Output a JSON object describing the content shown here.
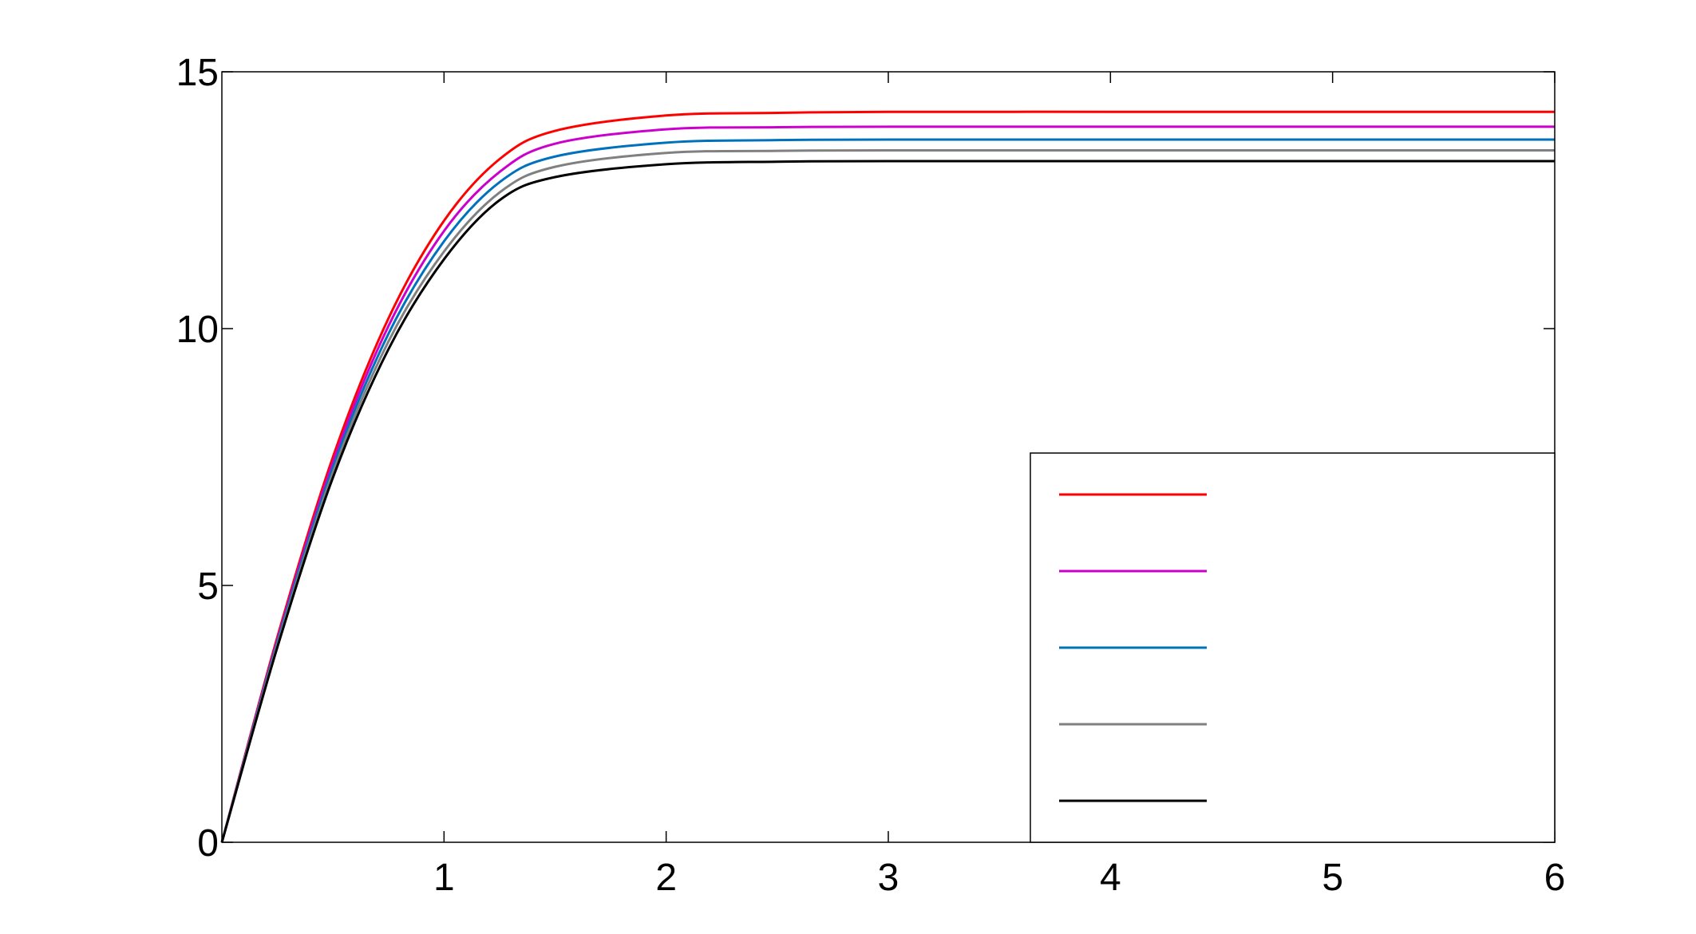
{
  "chart_data": {
    "type": "line",
    "title": "",
    "xlabel": "",
    "ylabel": "",
    "xlim": [
      0,
      6
    ],
    "ylim": [
      0,
      15
    ],
    "x_ticks": [
      1,
      2,
      3,
      4,
      5,
      6
    ],
    "x_tick_labels": [
      "1",
      "2",
      "3",
      "4",
      "5",
      "6"
    ],
    "y_ticks": [
      0,
      5,
      10,
      15
    ],
    "y_tick_labels": [
      "0",
      "5",
      "10",
      "15"
    ],
    "grid": false,
    "legend": {
      "position": "bottom-right",
      "labels_visible": false
    },
    "series": [
      {
        "color": "#ff0000",
        "x": [
          0,
          0.25,
          0.5,
          0.75,
          1.0,
          1.25,
          1.5,
          2.0,
          2.5,
          3.0,
          4.0,
          5.0,
          6.0
        ],
        "y": [
          0,
          4.0,
          7.5,
          10.2,
          12.1,
          13.3,
          13.85,
          14.15,
          14.2,
          14.22,
          14.22,
          14.22,
          14.22
        ]
      },
      {
        "color": "#cc00cc",
        "x": [
          0,
          0.25,
          0.5,
          0.75,
          1.0,
          1.25,
          1.5,
          2.0,
          2.5,
          3.0,
          4.0,
          5.0,
          6.0
        ],
        "y": [
          0,
          3.95,
          7.4,
          10.05,
          11.9,
          13.05,
          13.6,
          13.88,
          13.92,
          13.93,
          13.93,
          13.93,
          13.93
        ]
      },
      {
        "color": "#0072bd",
        "x": [
          0,
          0.25,
          0.5,
          0.75,
          1.0,
          1.25,
          1.5,
          2.0,
          2.5,
          3.0,
          4.0,
          5.0,
          6.0
        ],
        "y": [
          0,
          3.9,
          7.3,
          9.9,
          11.7,
          12.85,
          13.35,
          13.62,
          13.67,
          13.68,
          13.68,
          13.68,
          13.68
        ]
      },
      {
        "color": "#808080",
        "x": [
          0,
          0.25,
          0.5,
          0.75,
          1.0,
          1.25,
          1.5,
          2.0,
          2.5,
          3.0,
          4.0,
          5.0,
          6.0
        ],
        "y": [
          0,
          3.85,
          7.2,
          9.75,
          11.5,
          12.65,
          13.15,
          13.42,
          13.46,
          13.47,
          13.47,
          13.47,
          13.47
        ]
      },
      {
        "color": "#000000",
        "x": [
          0,
          0.25,
          0.5,
          0.75,
          1.0,
          1.25,
          1.5,
          2.0,
          2.5,
          3.0,
          4.0,
          5.0,
          6.0
        ],
        "y": [
          0,
          3.8,
          7.1,
          9.6,
          11.35,
          12.5,
          12.95,
          13.2,
          13.25,
          13.26,
          13.26,
          13.26,
          13.26
        ]
      }
    ]
  }
}
